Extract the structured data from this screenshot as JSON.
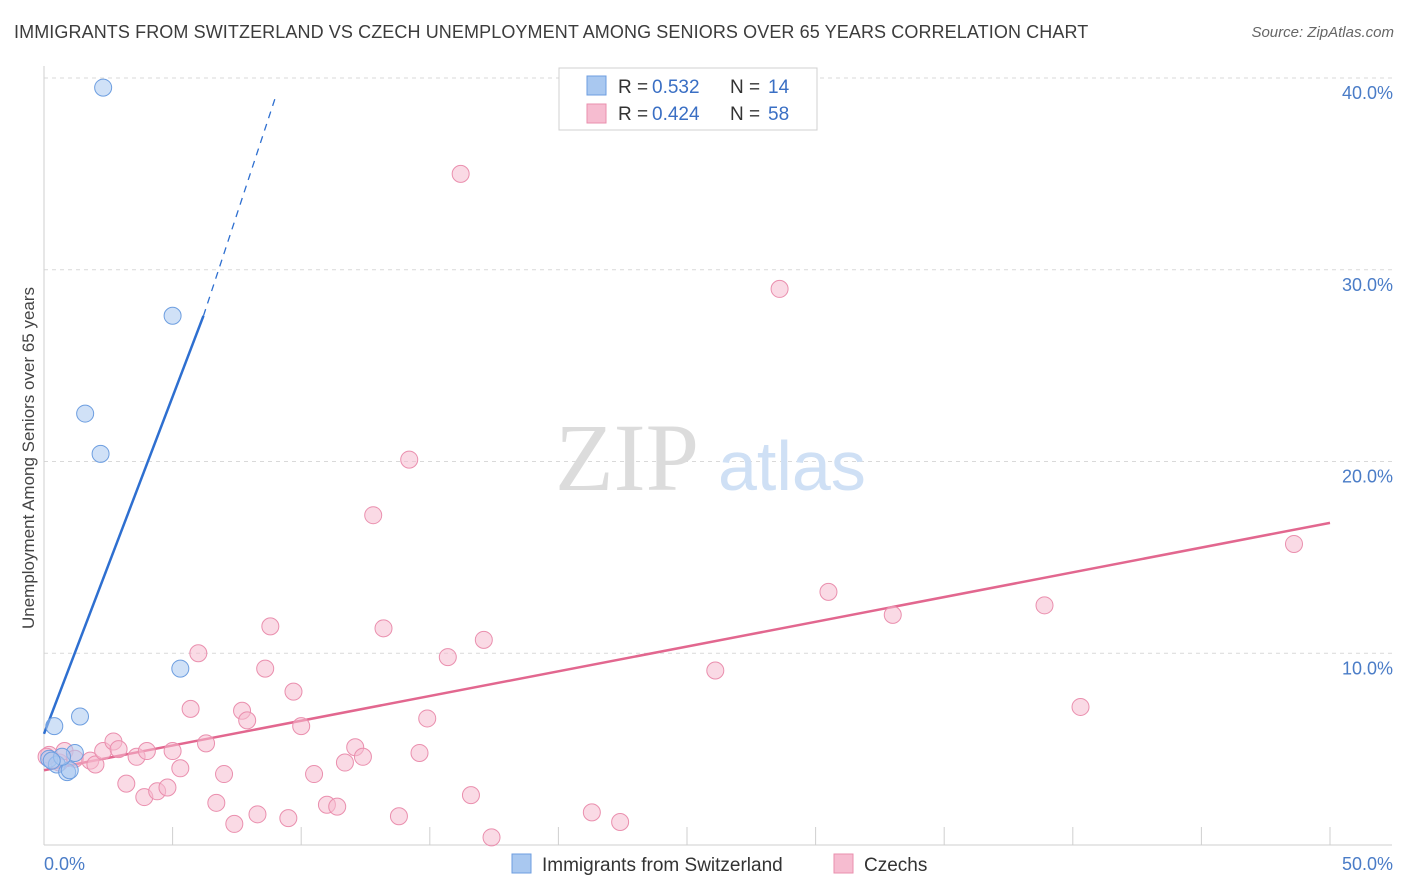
{
  "title": "IMMIGRANTS FROM SWITZERLAND VS CZECH UNEMPLOYMENT AMONG SENIORS OVER 65 YEARS CORRELATION CHART",
  "source": "Source: ZipAtlas.com",
  "watermark": {
    "zip": "ZIP",
    "atlas": "atlas"
  },
  "colors": {
    "blue_fill": "#a9c8f0",
    "blue_stroke": "#6d9ee0",
    "blue_line": "#2e6fd0",
    "pink_fill": "#f6bcd0",
    "pink_stroke": "#ea8fae",
    "pink_line": "#e2678f",
    "grid": "#d9d9d9",
    "tick_label": "#4a7cc7"
  },
  "legend": {
    "rows": [
      {
        "r_label": "R =",
        "r_value": "0.532",
        "n_label": "N =",
        "n_value": "14"
      },
      {
        "r_label": "R =",
        "r_value": "0.424",
        "n_label": "N =",
        "n_value": "58"
      }
    ]
  },
  "chart_data": {
    "type": "scatter",
    "title": "IMMIGRANTS FROM SWITZERLAND VS CZECH UNEMPLOYMENT AMONG SENIORS OVER 65 YEARS CORRELATION CHART",
    "xlabel": "",
    "ylabel": "Unemployment Among Seniors over 65 years",
    "xlim": [
      0,
      50
    ],
    "ylim": [
      0,
      40
    ],
    "x_tick_labels": [
      "0.0%",
      "50.0%"
    ],
    "y_ticks": [
      10,
      20,
      30,
      40
    ],
    "y_tick_labels": [
      "10.0%",
      "20.0%",
      "30.0%",
      "40.0%"
    ],
    "grid": true,
    "series": [
      {
        "name": "Immigrants from Switzerland",
        "color": "#a9c8f0",
        "points": [
          [
            2.3,
            39.5
          ],
          [
            5.0,
            27.6
          ],
          [
            1.6,
            22.5
          ],
          [
            2.2,
            20.4
          ],
          [
            5.3,
            9.2
          ],
          [
            0.4,
            6.2
          ],
          [
            1.4,
            6.7
          ],
          [
            0.2,
            4.5
          ],
          [
            0.5,
            4.2
          ],
          [
            0.9,
            3.8
          ],
          [
            1.0,
            3.9
          ],
          [
            1.2,
            4.8
          ],
          [
            0.7,
            4.6
          ],
          [
            0.3,
            4.4
          ]
        ],
        "trend": {
          "x0": 0.0,
          "y0": 5.8,
          "x1": 6.2,
          "y1": 27.6,
          "dash_x1": 9.0,
          "dash_y1": 39.0
        }
      },
      {
        "name": "Czechs",
        "color": "#f6bcd0",
        "points": [
          [
            0.2,
            4.7
          ],
          [
            0.6,
            4.3
          ],
          [
            0.8,
            4.9
          ],
          [
            1.2,
            4.5
          ],
          [
            1.8,
            4.4
          ],
          [
            2.0,
            4.2
          ],
          [
            2.3,
            4.9
          ],
          [
            2.7,
            5.4
          ],
          [
            2.9,
            5.0
          ],
          [
            3.2,
            3.2
          ],
          [
            3.6,
            4.6
          ],
          [
            4.0,
            4.9
          ],
          [
            3.9,
            2.5
          ],
          [
            4.4,
            2.8
          ],
          [
            4.8,
            3.0
          ],
          [
            5.0,
            4.9
          ],
          [
            5.3,
            4.0
          ],
          [
            5.7,
            7.1
          ],
          [
            6.0,
            10.0
          ],
          [
            6.3,
            5.3
          ],
          [
            6.7,
            2.2
          ],
          [
            7.0,
            3.7
          ],
          [
            7.4,
            1.1
          ],
          [
            7.7,
            7.0
          ],
          [
            7.9,
            6.5
          ],
          [
            8.3,
            1.6
          ],
          [
            8.6,
            9.2
          ],
          [
            8.8,
            11.4
          ],
          [
            9.5,
            1.4
          ],
          [
            9.7,
            8.0
          ],
          [
            10.0,
            6.2
          ],
          [
            10.5,
            3.7
          ],
          [
            11.0,
            2.1
          ],
          [
            11.4,
            2.0
          ],
          [
            11.7,
            4.3
          ],
          [
            12.1,
            5.1
          ],
          [
            12.4,
            4.6
          ],
          [
            12.8,
            17.2
          ],
          [
            13.2,
            11.3
          ],
          [
            13.8,
            1.5
          ],
          [
            14.2,
            20.1
          ],
          [
            14.6,
            4.8
          ],
          [
            14.9,
            6.6
          ],
          [
            15.7,
            9.8
          ],
          [
            16.2,
            35.0
          ],
          [
            16.6,
            2.6
          ],
          [
            17.1,
            10.7
          ],
          [
            17.4,
            0.4
          ],
          [
            21.3,
            1.7
          ],
          [
            22.4,
            1.2
          ],
          [
            26.1,
            9.1
          ],
          [
            28.6,
            29.0
          ],
          [
            30.5,
            13.2
          ],
          [
            33.0,
            12.0
          ],
          [
            38.9,
            12.5
          ],
          [
            40.3,
            7.2
          ],
          [
            48.6,
            15.7
          ],
          [
            0.1,
            4.6
          ]
        ],
        "trend": {
          "x0": 0.0,
          "y0": 3.9,
          "x1": 50.0,
          "y1": 16.8
        }
      }
    ]
  }
}
